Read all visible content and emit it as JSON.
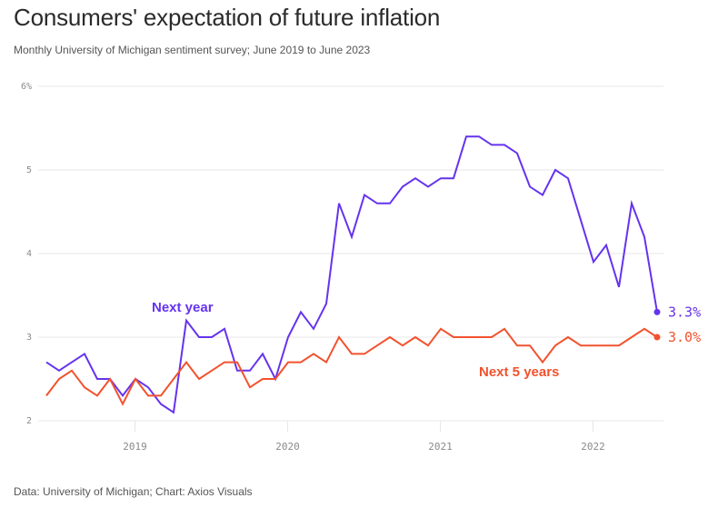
{
  "header": {
    "title": "Consumers' expectation of future inflation",
    "subtitle": "Monthly University of Michigan sentiment survey; June 2019 to June 2023"
  },
  "footer": {
    "source": "Data: University of Michigan; Chart: Axios Visuals"
  },
  "chart_data": {
    "type": "line",
    "title": "Consumers' expectation of future inflation",
    "subtitle": "Monthly University of Michigan sentiment survey; June 2019 to June 2023",
    "xlabel": "",
    "ylabel": "",
    "x_start": "2018-06",
    "x_end": "2022-06",
    "x_interval": "month",
    "x_tick_labels": [
      "2019",
      "2020",
      "2021",
      "2022"
    ],
    "y_tick_labels": [
      "6%",
      "5",
      "4",
      "3",
      "2"
    ],
    "y_ticks": [
      6,
      5,
      4,
      3,
      2
    ],
    "ylim": [
      2,
      6
    ],
    "grid": true,
    "series": [
      {
        "name": "Next year",
        "color": "#6533ee",
        "end_label": "3.3%",
        "values": [
          2.7,
          2.6,
          2.7,
          2.8,
          2.5,
          2.5,
          2.3,
          2.5,
          2.4,
          2.2,
          2.1,
          3.2,
          3.0,
          3.0,
          3.1,
          2.6,
          2.6,
          2.8,
          2.5,
          3.0,
          3.3,
          3.1,
          3.4,
          4.6,
          4.2,
          4.7,
          4.6,
          4.6,
          4.8,
          4.9,
          4.8,
          4.9,
          4.9,
          5.4,
          5.4,
          5.3,
          5.3,
          5.2,
          4.8,
          4.7,
          5.0,
          4.9,
          4.4,
          3.9,
          4.1,
          3.6,
          4.6,
          4.2,
          3.3
        ]
      },
      {
        "name": "Next 5 years",
        "color": "#f2522e",
        "end_label": "3.0%",
        "values": [
          2.3,
          2.5,
          2.6,
          2.4,
          2.3,
          2.5,
          2.2,
          2.5,
          2.3,
          2.3,
          2.5,
          2.7,
          2.5,
          2.6,
          2.7,
          2.7,
          2.4,
          2.5,
          2.5,
          2.7,
          2.7,
          2.8,
          2.7,
          3.0,
          2.8,
          2.8,
          2.9,
          3.0,
          2.9,
          3.0,
          2.9,
          3.1,
          3.0,
          3.0,
          3.0,
          3.0,
          3.1,
          2.9,
          2.9,
          2.7,
          2.9,
          3.0,
          2.9,
          2.9,
          2.9,
          2.9,
          3.0,
          3.1,
          3.0
        ]
      }
    ]
  }
}
